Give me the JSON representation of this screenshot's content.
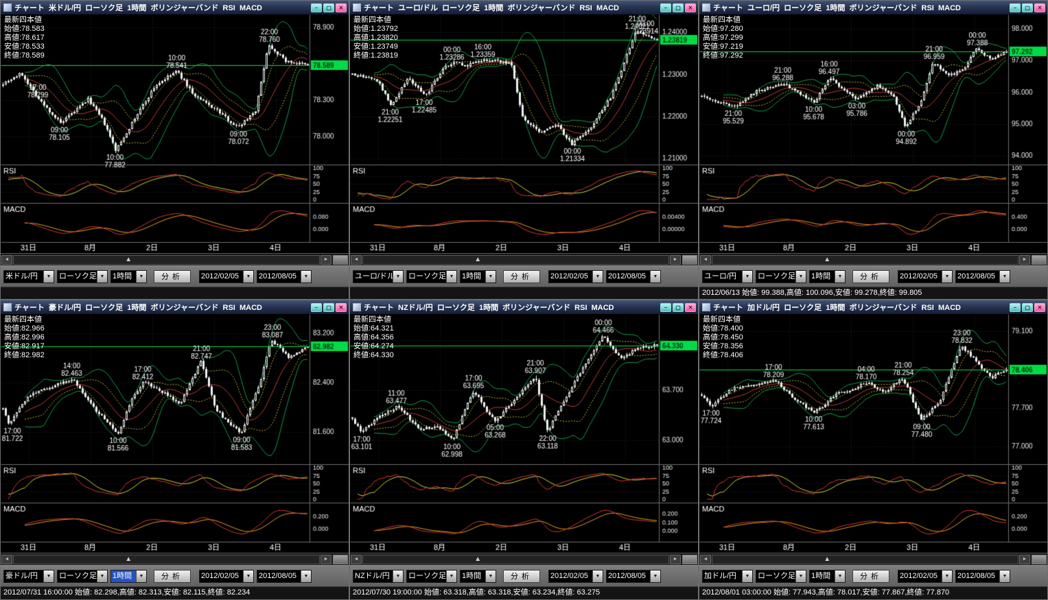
{
  "shared": {
    "info_header": "最新四本値",
    "rsi_label": "RSI",
    "macd_label": "MACD",
    "rsi_ticks": [
      "100",
      "75",
      "50",
      "25",
      "0"
    ],
    "xlabels": [
      {
        "t": 0.09,
        "text": "31日"
      },
      {
        "t": 0.29,
        "text": "8月"
      },
      {
        "t": 0.49,
        "text": "2日"
      },
      {
        "t": 0.69,
        "text": "3日"
      },
      {
        "t": 0.89,
        "text": "4日"
      }
    ],
    "window_buttons": {
      "min": "–",
      "max": "▢",
      "close": "✕"
    },
    "scrollbar": {
      "left": "◄",
      "right": "►",
      "thumb": "▲",
      "thumb_pos": 0.36
    },
    "icons": {
      "dropdown": "▼"
    },
    "toolbar": {
      "chart_type": "ローソク足",
      "timeframe": "1時間",
      "analyze": "分析",
      "date_from": "2012/02/05",
      "date_to": "2012/08/05"
    },
    "colors": {
      "candle": "#f0f0f0",
      "price_line": "#00dc46",
      "badge_bg": "#00dc46",
      "badge_text": "#00390f",
      "band_outer": "#159a4b",
      "band_inner": "#b9b93a",
      "band_mid": "#c03a3a",
      "rsi_red": "#d83434",
      "rsi_yellow": "#cfcf3a",
      "macd_red": "#d83434",
      "macd_yellow": "#e0a020",
      "grid": "#2d2d2d",
      "divider": "#6f6f6f",
      "axis_text": "#e8e8e8"
    }
  },
  "panels": [
    {
      "title": "チャート  米ドル/円  ローソク足  1時間  ボリンジャーバンド  RSI  MACD",
      "pair": "米ドル/円",
      "info": {
        "open": "始値:78.583",
        "high": "高値:78.617",
        "low": "安値:78.533",
        "close": "終値:78.589"
      },
      "status": "",
      "timeframe_highlight": false,
      "chart": {
        "seed": 7,
        "digits": 3,
        "ymin": 77.8,
        "ymax": 78.98,
        "yticks": [
          78.9,
          78.6,
          78.3,
          78.0
        ],
        "close": 78.589,
        "badge": "78.589",
        "anchors": [
          [
            0,
            78.44
          ],
          [
            0.06,
            78.52
          ],
          [
            0.12,
            78.299
          ],
          [
            0.19,
            78.105
          ],
          [
            0.28,
            78.31
          ],
          [
            0.33,
            78.12
          ],
          [
            0.37,
            77.882
          ],
          [
            0.44,
            78.18
          ],
          [
            0.5,
            78.42
          ],
          [
            0.57,
            78.541
          ],
          [
            0.63,
            78.33
          ],
          [
            0.7,
            78.22
          ],
          [
            0.77,
            78.072
          ],
          [
            0.83,
            78.22
          ],
          [
            0.87,
            78.76
          ],
          [
            0.93,
            78.62
          ],
          [
            1,
            78.589
          ]
        ],
        "labels": [
          {
            "t": 0.12,
            "time": "17:00",
            "price": 78.299,
            "pos": "above"
          },
          {
            "t": 0.19,
            "time": "09:00",
            "price": 78.105,
            "pos": "below"
          },
          {
            "t": 0.37,
            "time": "10:00",
            "price": 77.882,
            "pos": "below"
          },
          {
            "t": 0.57,
            "time": "10:00",
            "price": 78.541,
            "pos": "above"
          },
          {
            "t": 0.77,
            "time": "09:00",
            "price": 78.072,
            "pos": "below"
          },
          {
            "t": 0.87,
            "time": "22:00",
            "price": 78.76,
            "pos": "above"
          }
        ],
        "macd_ticks": [
          "0.080",
          "0.000"
        ]
      }
    },
    {
      "title": "チャート  ユーロ/ドル  ローソク足  1時間  ボリンジャーバンド  RSI  MACD",
      "pair": "ユーロ/ドル",
      "info": {
        "open": "始値:1.23792",
        "high": "高値:1.23820",
        "low": "安値:1.23749",
        "close": "終値:1.23819"
      },
      "status": "",
      "timeframe_highlight": false,
      "chart": {
        "seed": 13,
        "digits": 5,
        "ymin": 1.2095,
        "ymax": 1.2435,
        "yticks": [
          1.24,
          1.23,
          1.22,
          1.21
        ],
        "close": 1.23819,
        "badge": "1.23819",
        "anchors": [
          [
            0,
            1.2302
          ],
          [
            0.08,
            1.2288
          ],
          [
            0.13,
            1.22251
          ],
          [
            0.18,
            1.2292
          ],
          [
            0.24,
            1.22485
          ],
          [
            0.3,
            1.2316
          ],
          [
            0.33,
            1.23286
          ],
          [
            0.38,
            1.2322
          ],
          [
            0.43,
            1.23359
          ],
          [
            0.52,
            1.2328
          ],
          [
            0.56,
            1.2195
          ],
          [
            0.62,
            1.2162
          ],
          [
            0.67,
            1.2182
          ],
          [
            0.72,
            1.21334
          ],
          [
            0.78,
            1.2172
          ],
          [
            0.85,
            1.2248
          ],
          [
            0.93,
            1.24021
          ],
          [
            0.97,
            1.23914
          ],
          [
            1,
            1.23819
          ]
        ],
        "labels": [
          {
            "t": 0.13,
            "time": "21:00",
            "price": 1.22251,
            "pos": "below"
          },
          {
            "t": 0.24,
            "time": "17:00",
            "price": 1.22485,
            "pos": "below"
          },
          {
            "t": 0.33,
            "time": "00:00",
            "price": 1.23286,
            "pos": "above"
          },
          {
            "t": 0.43,
            "time": "16:00",
            "price": 1.23359,
            "pos": "above"
          },
          {
            "t": 0.72,
            "time": "00:00",
            "price": 1.21334,
            "pos": "below"
          },
          {
            "t": 0.93,
            "time": "21:00",
            "price": 1.24021,
            "pos": "above"
          },
          {
            "t": 0.97,
            "time": "00:00",
            "price": 1.23914,
            "pos": "above"
          }
        ],
        "macd_ticks": [
          "0.00400",
          "0.00000"
        ]
      }
    },
    {
      "title": "チャート  ユーロ/円  ローソク足  1時間  ボリンジャーバンド  RSI  MACD",
      "pair": "ユーロ/円",
      "info": {
        "open": "始値:97.280",
        "high": "高値:97.299",
        "low": "安値:97.219",
        "close": "終値:97.292"
      },
      "status": "2012/06/13 始値: 99.388,高値: 100.096,安値: 99.278,終値: 99.805",
      "timeframe_highlight": false,
      "chart": {
        "seed": 21,
        "digits": 3,
        "ymin": 93.85,
        "ymax": 98.35,
        "yticks": [
          98.0,
          97.0,
          96.0,
          95.0,
          94.0
        ],
        "close": 97.292,
        "badge": "97.292",
        "anchors": [
          [
            0,
            95.9
          ],
          [
            0.05,
            95.72
          ],
          [
            0.11,
            95.529
          ],
          [
            0.18,
            96.05
          ],
          [
            0.27,
            96.288
          ],
          [
            0.32,
            95.95
          ],
          [
            0.37,
            95.678
          ],
          [
            0.42,
            96.497
          ],
          [
            0.47,
            96.02
          ],
          [
            0.51,
            95.786
          ],
          [
            0.58,
            96.22
          ],
          [
            0.63,
            95.85
          ],
          [
            0.67,
            94.892
          ],
          [
            0.72,
            95.75
          ],
          [
            0.76,
            96.959
          ],
          [
            0.81,
            96.5
          ],
          [
            0.86,
            96.75
          ],
          [
            0.9,
            97.388
          ],
          [
            0.95,
            97.05
          ],
          [
            1,
            97.292
          ]
        ],
        "labels": [
          {
            "t": 0.11,
            "time": "21:00",
            "price": 95.529,
            "pos": "below"
          },
          {
            "t": 0.27,
            "time": "21:00",
            "price": 96.288,
            "pos": "above"
          },
          {
            "t": 0.37,
            "time": "10:00",
            "price": 95.678,
            "pos": "below"
          },
          {
            "t": 0.42,
            "time": "16:00",
            "price": 96.497,
            "pos": "above"
          },
          {
            "t": 0.51,
            "time": "03:00",
            "price": 95.786,
            "pos": "below"
          },
          {
            "t": 0.67,
            "time": "00:00",
            "price": 94.892,
            "pos": "below"
          },
          {
            "t": 0.76,
            "time": "21:00",
            "price": 96.959,
            "pos": "above"
          },
          {
            "t": 0.9,
            "time": "00:00",
            "price": 97.388,
            "pos": "above"
          }
        ],
        "macd_ticks": [
          "0.400",
          "0.000"
        ]
      }
    },
    {
      "title": "チャート  豪ドル/円  ローソク足  1時間  ボリンジャーバンド  RSI  MACD",
      "pair": "豪ドル/円",
      "info": {
        "open": "始値:82.966",
        "high": "高値:82.996",
        "low": "安値:82.917",
        "close": "終値:82.982"
      },
      "status": "2012/07/31 16:00:00 始値: 82.298,高値: 82.313,安値: 82.115,終値: 82.234",
      "timeframe_highlight": true,
      "chart": {
        "seed": 29,
        "digits": 3,
        "ymin": 81.15,
        "ymax": 83.45,
        "yticks": [
          83.2,
          82.4,
          81.6
        ],
        "close": 82.982,
        "badge": "82.982",
        "anchors": [
          [
            0,
            82.0
          ],
          [
            0.02,
            81.722
          ],
          [
            0.08,
            82.18
          ],
          [
            0.15,
            82.32
          ],
          [
            0.23,
            82.463
          ],
          [
            0.3,
            81.98
          ],
          [
            0.38,
            81.566
          ],
          [
            0.42,
            82.12
          ],
          [
            0.46,
            82.412
          ],
          [
            0.52,
            82.26
          ],
          [
            0.58,
            82.05
          ],
          [
            0.65,
            82.747
          ],
          [
            0.7,
            81.95
          ],
          [
            0.78,
            81.583
          ],
          [
            0.84,
            82.35
          ],
          [
            0.88,
            83.087
          ],
          [
            0.94,
            82.8
          ],
          [
            1,
            82.982
          ]
        ],
        "labels": [
          {
            "t": 0.02,
            "time": "17:00",
            "price": 81.722,
            "pos": "below"
          },
          {
            "t": 0.23,
            "time": "14:00",
            "price": 82.463,
            "pos": "above"
          },
          {
            "t": 0.38,
            "time": "10:00",
            "price": 81.566,
            "pos": "below"
          },
          {
            "t": 0.46,
            "time": "17:00",
            "price": 82.412,
            "pos": "above"
          },
          {
            "t": 0.65,
            "time": "21:00",
            "price": 82.747,
            "pos": "above"
          },
          {
            "t": 0.78,
            "time": "09:00",
            "price": 81.583,
            "pos": "below"
          },
          {
            "t": 0.88,
            "time": "23:00",
            "price": 83.087,
            "pos": "above"
          }
        ],
        "macd_ticks": [
          "0.200",
          "0.000"
        ]
      }
    },
    {
      "title": "チャート  NZドル/円  ローソク足  1時間  ボリンジャーバンド  RSI  MACD",
      "pair": "NZドル/円",
      "info": {
        "open": "始値:64.321",
        "high": "高値:64.356",
        "low": "安値:64.274",
        "close": "終値:64.330"
      },
      "status": "2012/07/30 19:00:00 始値: 63.318,高値: 63.318,安値: 63.234,終値: 63.275",
      "timeframe_highlight": false,
      "chart": {
        "seed": 37,
        "digits": 3,
        "ymin": 62.72,
        "ymax": 64.72,
        "yticks": [
          64.4,
          63.7,
          63.0
        ],
        "close": 64.33,
        "badge": "64.330",
        "anchors": [
          [
            0,
            63.3
          ],
          [
            0.03,
            63.101
          ],
          [
            0.09,
            63.35
          ],
          [
            0.15,
            63.477
          ],
          [
            0.22,
            63.15
          ],
          [
            0.28,
            63.2
          ],
          [
            0.33,
            62.998
          ],
          [
            0.37,
            63.45
          ],
          [
            0.4,
            63.695
          ],
          [
            0.44,
            63.4
          ],
          [
            0.47,
            63.268
          ],
          [
            0.53,
            63.55
          ],
          [
            0.57,
            63.75
          ],
          [
            0.6,
            63.907
          ],
          [
            0.64,
            63.118
          ],
          [
            0.7,
            63.6
          ],
          [
            0.76,
            64.05
          ],
          [
            0.82,
            64.466
          ],
          [
            0.88,
            64.15
          ],
          [
            0.94,
            64.3
          ],
          [
            1,
            64.33
          ]
        ],
        "labels": [
          {
            "t": 0.03,
            "time": "17:00",
            "price": 63.101,
            "pos": "below"
          },
          {
            "t": 0.15,
            "time": "11:00",
            "price": 63.477,
            "pos": "above"
          },
          {
            "t": 0.33,
            "time": "10:00",
            "price": 62.998,
            "pos": "below"
          },
          {
            "t": 0.4,
            "time": "17:00",
            "price": 63.695,
            "pos": "above"
          },
          {
            "t": 0.47,
            "time": "05:00",
            "price": 63.268,
            "pos": "below"
          },
          {
            "t": 0.6,
            "time": "21:00",
            "price": 63.907,
            "pos": "above"
          },
          {
            "t": 0.64,
            "time": "22:00",
            "price": 63.118,
            "pos": "below"
          },
          {
            "t": 0.82,
            "time": "00:00",
            "price": 64.466,
            "pos": "above"
          }
        ],
        "macd_ticks": [
          "0.200",
          "0.100",
          "0.000"
        ]
      }
    },
    {
      "title": "チャート  加ドル/円  ローソク足  1時間  ボリンジャーバンド  RSI  MACD",
      "pair": "加ドル/円",
      "info": {
        "open": "始値:78.400",
        "high": "高値:78.450",
        "low": "安値:78.356",
        "close": "終値:78.406"
      },
      "status": "2012/08/01 03:00:00 始値: 77.943,高値: 78.017,安値: 77.867,終値: 77.870",
      "timeframe_highlight": false,
      "chart": {
        "seed": 45,
        "digits": 3,
        "ymin": 76.75,
        "ymax": 79.35,
        "yticks": [
          79.1,
          78.4,
          77.7,
          77.0
        ],
        "close": 78.406,
        "badge": "78.406",
        "anchors": [
          [
            0,
            77.95
          ],
          [
            0.03,
            77.724
          ],
          [
            0.1,
            78.05
          ],
          [
            0.17,
            78.12
          ],
          [
            0.24,
            78.209
          ],
          [
            0.3,
            77.88
          ],
          [
            0.37,
            77.613
          ],
          [
            0.44,
            77.95
          ],
          [
            0.5,
            78.05
          ],
          [
            0.54,
            78.17
          ],
          [
            0.6,
            77.99
          ],
          [
            0.66,
            78.254
          ],
          [
            0.72,
            77.48
          ],
          [
            0.78,
            77.8
          ],
          [
            0.85,
            78.832
          ],
          [
            0.9,
            78.55
          ],
          [
            0.95,
            78.25
          ],
          [
            1,
            78.406
          ]
        ],
        "labels": [
          {
            "t": 0.03,
            "time": "17:00",
            "price": 77.724,
            "pos": "below"
          },
          {
            "t": 0.24,
            "time": "17:00",
            "price": 78.209,
            "pos": "above"
          },
          {
            "t": 0.37,
            "time": "10:00",
            "price": 77.613,
            "pos": "below"
          },
          {
            "t": 0.54,
            "time": "04:00",
            "price": 78.17,
            "pos": "above"
          },
          {
            "t": 0.66,
            "time": "21:00",
            "price": 78.254,
            "pos": "above"
          },
          {
            "t": 0.72,
            "time": "09:00",
            "price": 77.48,
            "pos": "below"
          },
          {
            "t": 0.85,
            "time": "23:00",
            "price": 78.832,
            "pos": "above"
          }
        ],
        "macd_ticks": [
          "0.200",
          "0.000"
        ]
      }
    }
  ]
}
